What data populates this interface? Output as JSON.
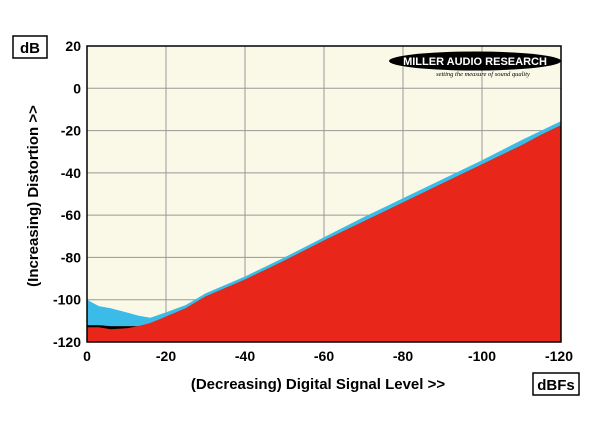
{
  "chart_data": {
    "type": "area",
    "title": "",
    "xlabel": "(Decreasing) Digital Signal Level >>",
    "ylabel": "(Increasing) Distortion >>",
    "x_unit": "dBFs",
    "y_unit": "dB",
    "x_ticks": [
      0,
      -20,
      -40,
      -60,
      -80,
      -100,
      -120
    ],
    "x_tick_labels": [
      "0",
      "-20",
      "-40",
      "-60",
      "-80",
      "-100",
      "-120"
    ],
    "y_ticks": [
      20,
      0,
      -20,
      -40,
      -60,
      -80,
      -100,
      -120
    ],
    "y_tick_labels": [
      "20",
      "0",
      "-20",
      "-40",
      "-60",
      "-80",
      "-100",
      "-120"
    ],
    "xlim": [
      0,
      -120
    ],
    "ylim": [
      -120,
      20
    ],
    "grid": true,
    "x": [
      0,
      -3,
      -6,
      -10,
      -13,
      -16,
      -20,
      -25,
      -30,
      -40,
      -50,
      -60,
      -70,
      -80,
      -90,
      -100,
      -110,
      -115,
      -120
    ],
    "series": [
      {
        "values": [
          -100,
          -103,
          -104,
          -106,
          -107.5,
          -108.5,
          -106,
          -102.5,
          -97,
          -89,
          -80,
          -70.5,
          -61,
          -52,
          -43,
          -34,
          -24.5,
          -20,
          -15.5
        ]
      },
      {
        "values": [
          -112,
          -112,
          -112.5,
          -112.5,
          -112.5,
          -111.5,
          -108,
          -104,
          -98.5,
          -90.5,
          -81.5,
          -72,
          -63,
          -54,
          -45,
          -36,
          -27,
          -22,
          -17.5
        ]
      },
      {
        "values": [
          -113,
          -113,
          -114,
          -113.5,
          -112.5,
          -111,
          -108,
          -104,
          -98.5,
          -90.5,
          -81.5,
          -72,
          -63,
          -54,
          -45,
          -36,
          -27,
          -22,
          -17.5
        ]
      },
      {
        "values": [
          -113,
          -115,
          -118,
          -120,
          -120,
          -118,
          -115,
          -111,
          -106,
          -98.5,
          -91,
          -83,
          -75,
          -66,
          -58,
          -49,
          -40,
          -35,
          -30
        ]
      }
    ],
    "colors": {
      "background": "#faf8e6",
      "grid": "#999999",
      "blue": "#3bbbe8",
      "black": "#000000",
      "red": "#e8261a"
    }
  },
  "logo": {
    "brand": "MILLER AUDIO RESEARCH",
    "tagline": "setting the measure of sound quality"
  }
}
